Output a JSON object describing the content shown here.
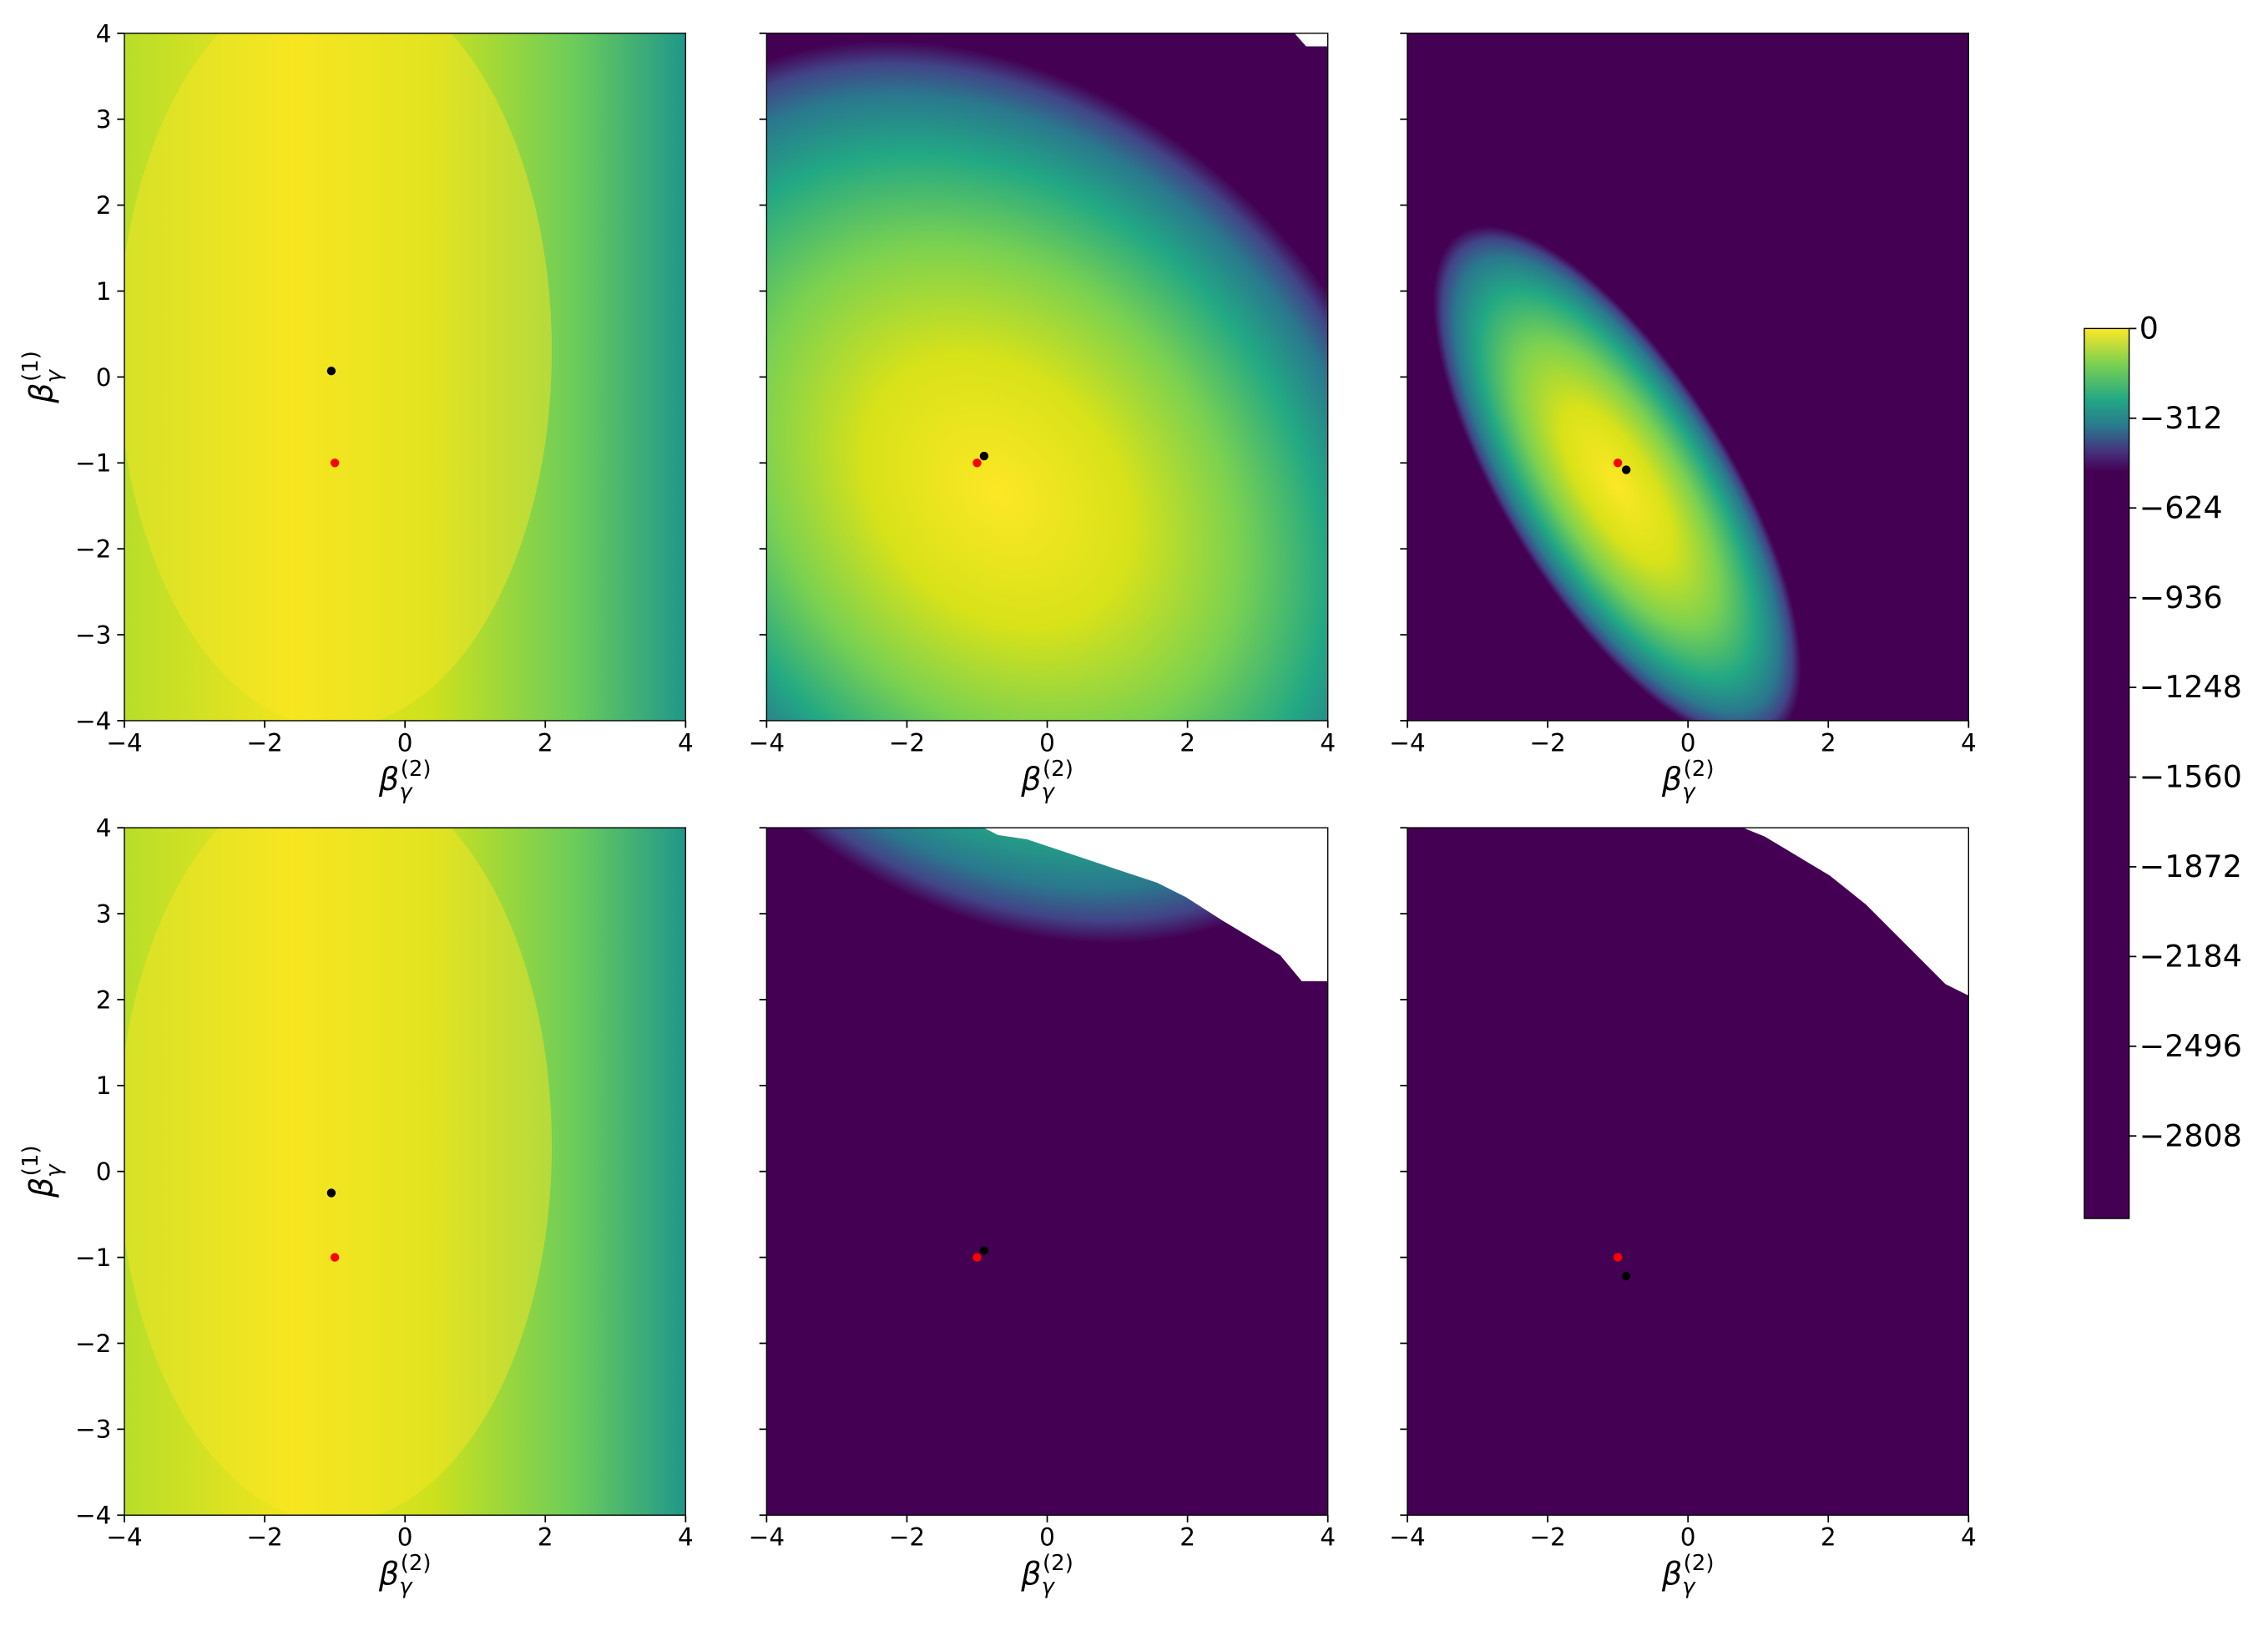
{
  "chart_data": [
    {
      "type": "contour",
      "xlim": [
        -4,
        4
      ],
      "ylim": [
        -4,
        4
      ],
      "xticks": [
        {
          "value": -4,
          "label": "−4"
        },
        {
          "value": -2,
          "label": "−2"
        },
        0,
        2,
        4
      ],
      "yticks": [
        {
          "value": -4,
          "label": "−4"
        },
        {
          "value": -3,
          "label": "−3"
        },
        {
          "value": -2,
          "label": "−2"
        },
        {
          "value": -1,
          "label": "−1"
        },
        0,
        1,
        2,
        3,
        4
      ],
      "xlabel": {
        "base": "β",
        "sub": "γ",
        "sup": "(2)"
      },
      "ylabel": {
        "base": "β",
        "sub": "γ",
        "sup": "(1)"
      },
      "points": [
        {
          "x": -1.05,
          "y": 0.07,
          "color": "#000000"
        },
        {
          "x": -1,
          "y": -1,
          "color": "#ff0000"
        }
      ]
    },
    {
      "type": "contour",
      "xlim": [
        -4,
        4
      ],
      "ylim": [
        -4,
        4
      ],
      "xticks": [
        {
          "value": -4,
          "label": "−4"
        },
        {
          "value": -2,
          "label": "−2"
        },
        0,
        2,
        4
      ],
      "yticks": [
        -4,
        -3,
        -2,
        -1,
        0,
        1,
        2,
        3,
        4
      ],
      "xlabel": {
        "base": "β",
        "sub": "γ",
        "sup": "(2)"
      },
      "points": [
        {
          "x": -0.9,
          "y": -0.92,
          "color": "#000000"
        },
        {
          "x": -1,
          "y": -1,
          "color": "#ff0000"
        }
      ]
    },
    {
      "type": "contour",
      "xlim": [
        -4,
        4
      ],
      "ylim": [
        -4,
        4
      ],
      "xticks": [
        {
          "value": -4,
          "label": "−4"
        },
        {
          "value": -2,
          "label": "−2"
        },
        0,
        2,
        4
      ],
      "yticks": [
        -4,
        -3,
        -2,
        -1,
        0,
        1,
        2,
        3,
        4
      ],
      "xlabel": {
        "base": "β",
        "sub": "γ",
        "sup": "(2)"
      },
      "points": [
        {
          "x": -1,
          "y": -1,
          "color": "#ff0000"
        },
        {
          "x": -0.88,
          "y": -1.08,
          "color": "#000000"
        }
      ]
    },
    {
      "type": "contour",
      "xlim": [
        -4,
        4
      ],
      "ylim": [
        -4,
        4
      ],
      "xticks": [
        {
          "value": -4,
          "label": "−4"
        },
        {
          "value": -2,
          "label": "−2"
        },
        0,
        2,
        4
      ],
      "yticks": [
        {
          "value": -4,
          "label": "−4"
        },
        {
          "value": -3,
          "label": "−3"
        },
        {
          "value": -2,
          "label": "−2"
        },
        {
          "value": -1,
          "label": "−1"
        },
        0,
        1,
        2,
        3,
        4
      ],
      "xlabel": {
        "base": "β",
        "sub": "γ",
        "sup": "(2)"
      },
      "ylabel": {
        "base": "β",
        "sub": "γ",
        "sup": "(1)"
      },
      "points": [
        {
          "x": -1.05,
          "y": -0.25,
          "color": "#000000"
        },
        {
          "x": -1,
          "y": -1,
          "color": "#ff0000"
        }
      ]
    },
    {
      "type": "contour",
      "xlim": [
        -4,
        4
      ],
      "ylim": [
        -4,
        4
      ],
      "xticks": [
        {
          "value": -4,
          "label": "−4"
        },
        {
          "value": -2,
          "label": "−2"
        },
        0,
        2,
        4
      ],
      "yticks": [
        -4,
        -3,
        -2,
        -1,
        0,
        1,
        2,
        3,
        4
      ],
      "xlabel": {
        "base": "β",
        "sub": "γ",
        "sup": "(2)"
      },
      "points": [
        {
          "x": -0.9,
          "y": -0.92,
          "color": "#000000"
        },
        {
          "x": -1,
          "y": -1,
          "color": "#ff0000"
        }
      ]
    },
    {
      "type": "contour",
      "xlim": [
        -4,
        4
      ],
      "ylim": [
        -4,
        4
      ],
      "xticks": [
        {
          "value": -4,
          "label": "−4"
        },
        {
          "value": -2,
          "label": "−2"
        },
        0,
        2,
        4
      ],
      "yticks": [
        -4,
        -3,
        -2,
        -1,
        0,
        1,
        2,
        3,
        4
      ],
      "xlabel": {
        "base": "β",
        "sub": "γ",
        "sup": "(2)"
      },
      "points": [
        {
          "x": -1,
          "y": -1,
          "color": "#ff0000"
        },
        {
          "x": -0.88,
          "y": -1.22,
          "color": "#000000"
        }
      ]
    },
    {
      "type": "colorbar",
      "ylim": [
        -3095,
        0
      ],
      "yticks": [
        0,
        {
          "value": -312,
          "label": "−312"
        },
        {
          "value": -624,
          "label": "−624"
        },
        {
          "value": -936,
          "label": "−936"
        },
        {
          "value": -1248,
          "label": "−1248"
        },
        {
          "value": -1560,
          "label": "−1560"
        },
        {
          "value": -1872,
          "label": "−1872"
        },
        {
          "value": -2184,
          "label": "−2184"
        },
        {
          "value": -2496,
          "label": "−2496"
        },
        {
          "value": -2808,
          "label": "−2808"
        }
      ]
    }
  ]
}
